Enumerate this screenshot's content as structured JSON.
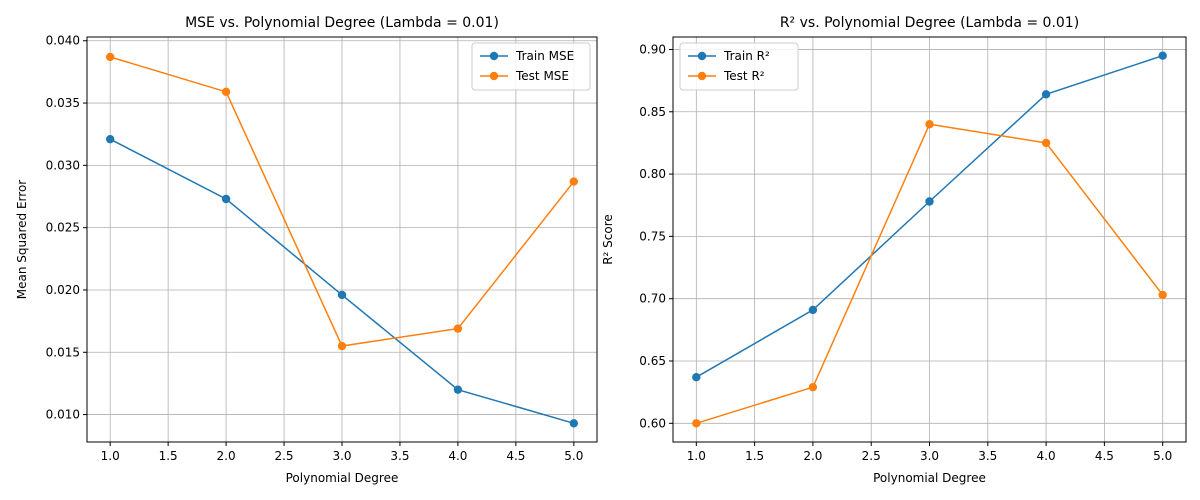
{
  "chart_data": [
    {
      "type": "line",
      "title": "MSE vs. Polynomial Degree (Lambda = 0.01)",
      "xlabel": "Polynomial Degree",
      "ylabel": "Mean Squared Error",
      "xlim": [
        0.8,
        5.2
      ],
      "ylim": [
        0.0078,
        0.0403
      ],
      "xticks": [
        "1.0",
        "1.5",
        "2.0",
        "2.5",
        "3.0",
        "3.5",
        "4.0",
        "4.5",
        "5.0"
      ],
      "yticks": [
        "0.010",
        "0.015",
        "0.020",
        "0.025",
        "0.030",
        "0.035",
        "0.040"
      ],
      "grid": true,
      "legend": "upper right",
      "x": [
        1,
        2,
        3,
        4,
        5
      ],
      "series": [
        {
          "name": "Train MSE",
          "color": "#1f77b4",
          "marker": "circle",
          "values": [
            0.0321,
            0.0273,
            0.0196,
            0.012,
            0.0093
          ]
        },
        {
          "name": "Test MSE",
          "color": "#ff7f0e",
          "marker": "circle",
          "values": [
            0.0387,
            0.0359,
            0.0155,
            0.0169,
            0.0287
          ]
        }
      ]
    },
    {
      "type": "line",
      "title": "R² vs. Polynomial Degree (Lambda = 0.01)",
      "xlabel": "Polynomial Degree",
      "ylabel": "R² Score",
      "xlim": [
        0.8,
        5.2
      ],
      "ylim": [
        0.585,
        0.91
      ],
      "xticks": [
        "1.0",
        "1.5",
        "2.0",
        "2.5",
        "3.0",
        "3.5",
        "4.0",
        "4.5",
        "5.0"
      ],
      "yticks": [
        "0.60",
        "0.65",
        "0.70",
        "0.75",
        "0.80",
        "0.85",
        "0.90"
      ],
      "grid": true,
      "legend": "upper left",
      "x": [
        1,
        2,
        3,
        4,
        5
      ],
      "series": [
        {
          "name": "Train R²",
          "color": "#1f77b4",
          "marker": "circle",
          "values": [
            0.637,
            0.691,
            0.778,
            0.864,
            0.895
          ]
        },
        {
          "name": "Test R²",
          "color": "#ff7f0e",
          "marker": "circle",
          "values": [
            0.6,
            0.629,
            0.84,
            0.825,
            0.703
          ]
        }
      ]
    }
  ]
}
